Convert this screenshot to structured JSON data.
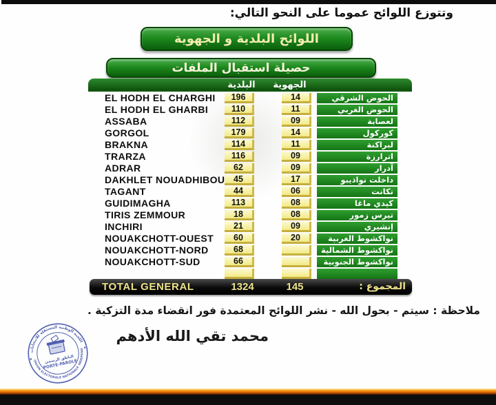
{
  "page": {
    "intro_text": "وتتوزع اللوائح عموما  على النحو التالي:",
    "banner1": "اللوائح البلدية و الجهوية",
    "banner2": "حصيلة استقبال الملفات",
    "note": "ملاحظة :  سيتم - بحول الله - نشر اللوائح المعتمدة فور انقضاء مدة التزكية .",
    "signature": "محمد تقي الله الأدهم"
  },
  "table": {
    "columns": {
      "baladiya": "البلدية",
      "jihawiya": "الجهوية"
    },
    "rows": [
      {
        "name_fr": "EL HODH EL CHARGHI",
        "baladiya": "196",
        "jihawiya": "14",
        "name_ar": "الحوض الشرقي"
      },
      {
        "name_fr": "EL HODH EL GHARBI",
        "baladiya": "110",
        "jihawiya": "11",
        "name_ar": "الحوض الغربي"
      },
      {
        "name_fr": "ASSABA",
        "baladiya": "112",
        "jihawiya": "09",
        "name_ar": "لعصابة"
      },
      {
        "name_fr": "GORGOL",
        "baladiya": "179",
        "jihawiya": "14",
        "name_ar": "كوركول"
      },
      {
        "name_fr": "BRAKNA",
        "baladiya": "114",
        "jihawiya": "11",
        "name_ar": "لبراكنة"
      },
      {
        "name_fr": "TRARZA",
        "baladiya": "116",
        "jihawiya": "09",
        "name_ar": "اترارزة"
      },
      {
        "name_fr": "ADRAR",
        "baladiya": "62",
        "jihawiya": "09",
        "name_ar": "آدرار"
      },
      {
        "name_fr": "DAKHLET NOUADHIBOU",
        "baladiya": "45",
        "jihawiya": "17",
        "name_ar": "داخلت نواذيبو"
      },
      {
        "name_fr": "TAGANT",
        "baladiya": "44",
        "jihawiya": "06",
        "name_ar": "تكانت"
      },
      {
        "name_fr": "GUIDIMAGHA",
        "baladiya": "113",
        "jihawiya": "08",
        "name_ar": "كيدي ماغا"
      },
      {
        "name_fr": "TIRIS ZEMMOUR",
        "baladiya": "18",
        "jihawiya": "08",
        "name_ar": "تيرس زمور"
      },
      {
        "name_fr": "INCHIRI",
        "baladiya": "21",
        "jihawiya": "09",
        "name_ar": "إنشيري"
      },
      {
        "name_fr": "NOUAKCHOTT-OUEST",
        "baladiya": "60",
        "jihawiya": "20",
        "name_ar": "نواكشوط الغربية"
      },
      {
        "name_fr": "NOUAKCHOTT-NORD",
        "baladiya": "68",
        "jihawiya": "",
        "name_ar": "نواكشوط الشمالية"
      },
      {
        "name_fr": "NOUAKCHOTT-SUD",
        "baladiya": "66",
        "jihawiya": "",
        "name_ar": "نواكشوط الجنوبية"
      },
      {
        "name_fr": "",
        "baladiya": "",
        "jihawiya": "",
        "name_ar": ""
      }
    ],
    "total": {
      "label_fr": "TOTAL GENERAL",
      "baladiya": "1324",
      "jihawiya": "145",
      "label_ar": "المجموع :"
    }
  },
  "stamp": {
    "top_arc": "اللجنة الوطنية المستقلة للانتخابات",
    "center_line1": "الناطق الرسمي",
    "center_line2": "PORTE-PAROLE",
    "bottom_arc": "COMMISSION ELECTORALE NATIONALE INDEPENDANTE",
    "color": "#4253a8"
  },
  "colors": {
    "banner_green_top": "#4fae4f",
    "banner_green_bottom": "#0b5e0b",
    "cell_green": "#1e8b1e",
    "cell_yellow": "#f3ea85",
    "cell_yellow_border": "#cdb94a",
    "total_text": "#ece189",
    "bottom_orange": "#e87508"
  }
}
